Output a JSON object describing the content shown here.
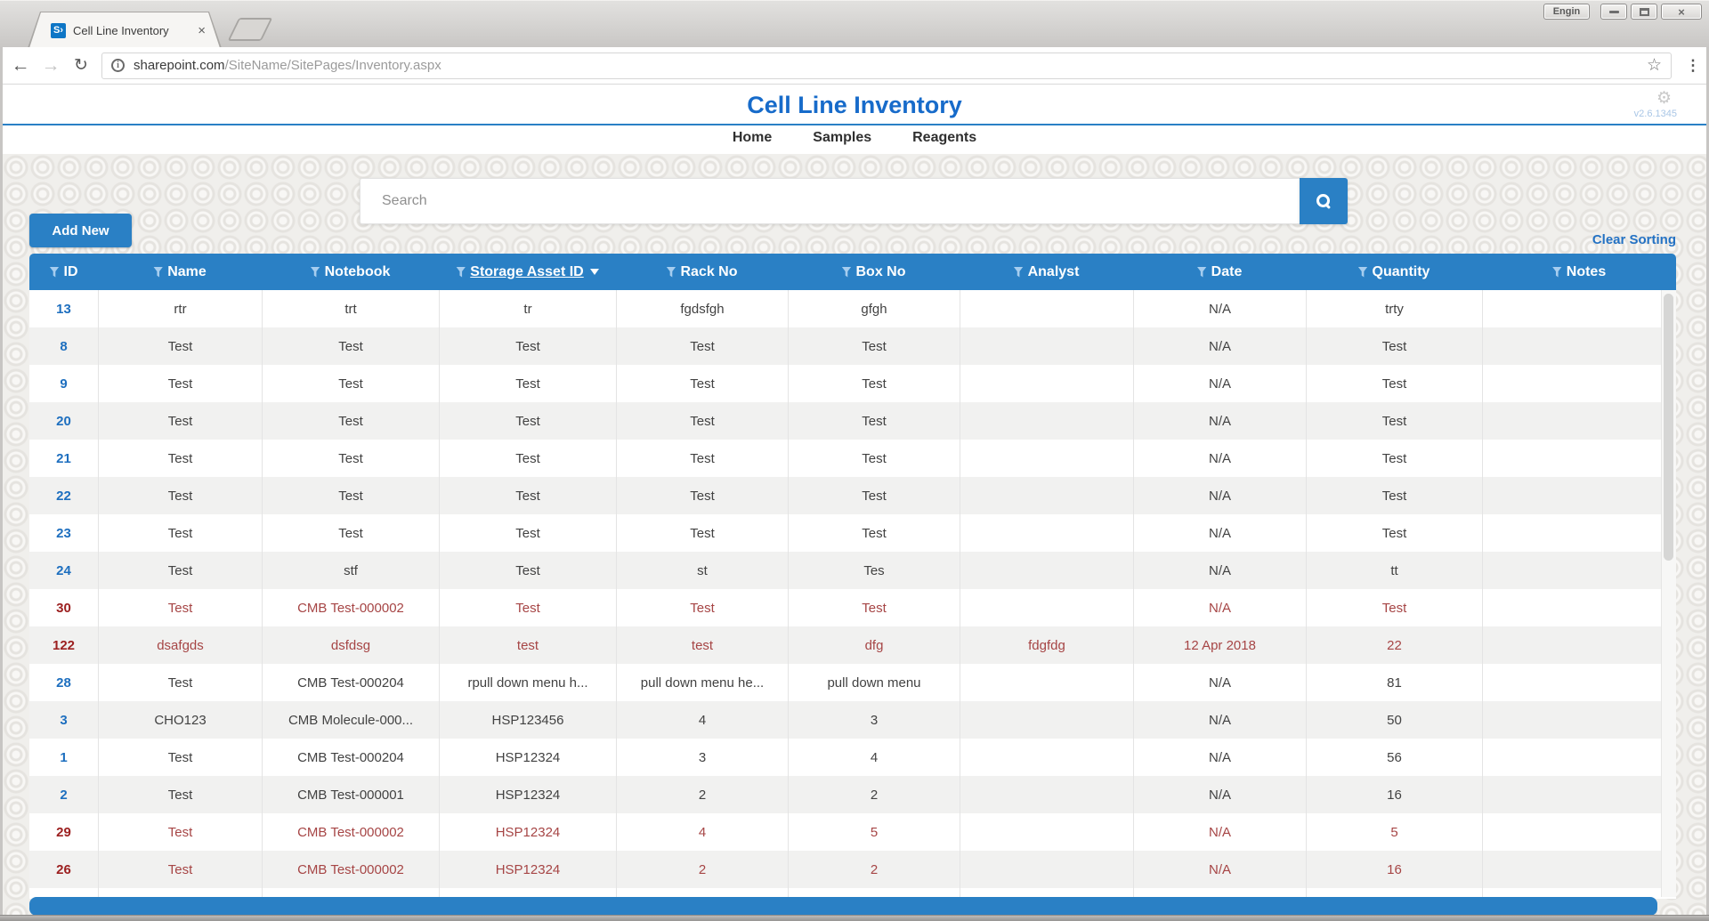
{
  "browser": {
    "tab_title": "Cell Line Inventory",
    "url_host": "sharepoint.com",
    "url_path": "/SiteName/SitePages/Inventory.aspx",
    "profile_label": "Engin"
  },
  "icons": {
    "sharepoint_logo": "S›",
    "tab_close": "×",
    "window_close": "×",
    "back": "←",
    "forward": "→",
    "reload": "↻",
    "page_info": "i",
    "bookmark_star": "☆",
    "browser_menu": "⋮",
    "settings_gear": "⚙"
  },
  "page": {
    "title": "Cell Line Inventory",
    "version": "v2.6.1345",
    "nav": [
      {
        "label": "Home"
      },
      {
        "label": "Samples"
      },
      {
        "label": "Reagents"
      }
    ],
    "search_placeholder": "Search",
    "add_new_label": "Add New",
    "clear_sorting_label": "Clear Sorting"
  },
  "table": {
    "columns": [
      {
        "label": "ID"
      },
      {
        "label": "Name"
      },
      {
        "label": "Notebook"
      },
      {
        "label": "Storage Asset ID",
        "sort": "desc"
      },
      {
        "label": "Rack No"
      },
      {
        "label": "Box No"
      },
      {
        "label": "Analyst"
      },
      {
        "label": "Date"
      },
      {
        "label": "Quantity"
      },
      {
        "label": "Notes"
      }
    ],
    "rows": [
      {
        "red": false,
        "cells": [
          "13",
          "rtr",
          "trt",
          "tr",
          "fgdsfgh",
          "gfgh",
          "",
          "N/A",
          "trty",
          ""
        ]
      },
      {
        "red": false,
        "cells": [
          "8",
          "Test",
          "Test",
          "Test",
          "Test",
          "Test",
          "",
          "N/A",
          "Test",
          ""
        ]
      },
      {
        "red": false,
        "cells": [
          "9",
          "Test",
          "Test",
          "Test",
          "Test",
          "Test",
          "",
          "N/A",
          "Test",
          ""
        ]
      },
      {
        "red": false,
        "cells": [
          "20",
          "Test",
          "Test",
          "Test",
          "Test",
          "Test",
          "",
          "N/A",
          "Test",
          ""
        ]
      },
      {
        "red": false,
        "cells": [
          "21",
          "Test",
          "Test",
          "Test",
          "Test",
          "Test",
          "",
          "N/A",
          "Test",
          ""
        ]
      },
      {
        "red": false,
        "cells": [
          "22",
          "Test",
          "Test",
          "Test",
          "Test",
          "Test",
          "",
          "N/A",
          "Test",
          ""
        ]
      },
      {
        "red": false,
        "cells": [
          "23",
          "Test",
          "Test",
          "Test",
          "Test",
          "Test",
          "",
          "N/A",
          "Test",
          ""
        ]
      },
      {
        "red": false,
        "cells": [
          "24",
          "Test",
          "stf",
          "Test",
          "st",
          "Tes",
          "",
          "N/A",
          "tt",
          ""
        ]
      },
      {
        "red": true,
        "cells": [
          "30",
          "Test",
          "CMB Test-000002",
          "Test",
          "Test",
          "Test",
          "",
          "N/A",
          "Test",
          ""
        ]
      },
      {
        "red": true,
        "cells": [
          "122",
          "dsafgds",
          "dsfdsg",
          "test",
          "test",
          "dfg",
          "fdgfdg",
          "12 Apr 2018",
          "22",
          ""
        ]
      },
      {
        "red": false,
        "cells": [
          "28",
          "Test",
          "CMB Test-000204",
          "rpull down menu h...",
          "pull down menu he...",
          "pull down menu",
          "",
          "N/A",
          "81",
          ""
        ]
      },
      {
        "red": false,
        "cells": [
          "3",
          "CHO123",
          "CMB Molecule-000...",
          "HSP123456",
          "4",
          "3",
          "",
          "N/A",
          "50",
          ""
        ]
      },
      {
        "red": false,
        "cells": [
          "1",
          "Test",
          "CMB Test-000204",
          "HSP12324",
          "3",
          "4",
          "",
          "N/A",
          "56",
          ""
        ]
      },
      {
        "red": false,
        "cells": [
          "2",
          "Test",
          "CMB Test-000001",
          "HSP12324",
          "2",
          "2",
          "",
          "N/A",
          "16",
          ""
        ]
      },
      {
        "red": true,
        "cells": [
          "29",
          "Test",
          "CMB Test-000002",
          "HSP12324",
          "4",
          "5",
          "",
          "N/A",
          "5",
          ""
        ]
      },
      {
        "red": true,
        "cells": [
          "26",
          "Test",
          "CMB Test-000002",
          "HSP12324",
          "2",
          "2",
          "",
          "N/A",
          "16",
          ""
        ]
      }
    ]
  },
  "colors": {
    "accent_blue": "#2a80c5",
    "title_blue": "#176bca",
    "link_blue": "#2472c4",
    "id_blue": "#1e6fbf",
    "red_row_text": "#a64545",
    "red_row_id": "#9c2020"
  }
}
